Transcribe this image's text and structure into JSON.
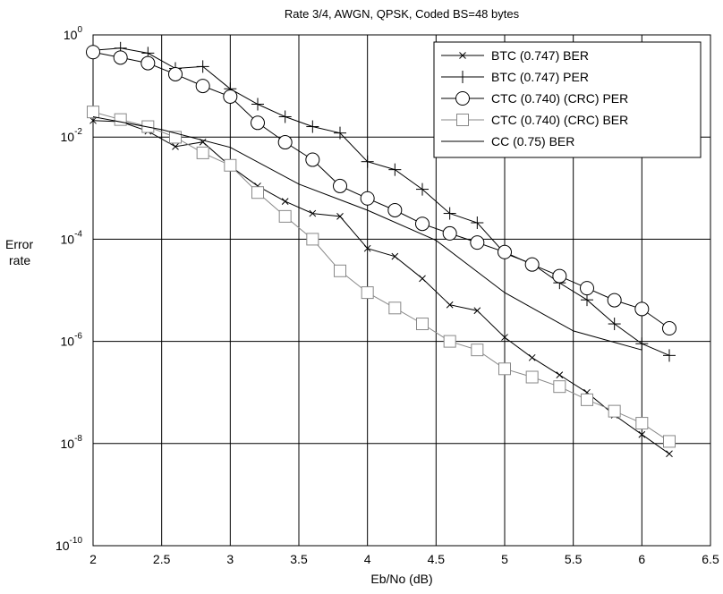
{
  "chart_data": {
    "type": "line",
    "title": "Rate 3/4, AWGN, QPSK, Coded BS=48 bytes",
    "xlabel": "Eb/No (dB)",
    "ylabel_line1": "Error",
    "ylabel_line2": "rate",
    "xlim": [
      2,
      6.5
    ],
    "ylim_exponent": [
      -10,
      0
    ],
    "yscale": "log",
    "grid": true,
    "legend_position": "top-right",
    "x_ticks": [
      "2",
      "2.5",
      "3",
      "3.5",
      "4",
      "4.5",
      "5",
      "5.5",
      "6",
      "6.5"
    ],
    "y_tick_base": "10",
    "y_tick_exponents": [
      "0",
      "-2",
      "-4",
      "-6",
      "-8",
      "-10"
    ],
    "series": [
      {
        "name": "BTC (0.747) BER",
        "marker": "x",
        "color": "#000000",
        "x": [
          2.0,
          2.2,
          2.4,
          2.6,
          2.8,
          3.0,
          3.2,
          3.4,
          3.6,
          3.8,
          4.0,
          4.2,
          4.4,
          4.6,
          4.8,
          5.0,
          5.2,
          5.4,
          5.6,
          5.8,
          6.0,
          6.2
        ],
        "y": [
          0.021,
          0.02,
          0.013,
          0.0065,
          0.008,
          0.0027,
          0.0011,
          0.00055,
          0.00032,
          0.00028,
          6.6e-05,
          4.6e-05,
          1.7e-05,
          5.2e-06,
          4e-06,
          1.2e-06,
          4.8e-07,
          2.2e-07,
          1e-07,
          3.6e-08,
          1.5e-08,
          6.3e-09
        ]
      },
      {
        "name": "BTC (0.747) PER",
        "marker": "+",
        "color": "#000000",
        "x": [
          2.0,
          2.2,
          2.4,
          2.6,
          2.8,
          3.0,
          3.2,
          3.4,
          3.6,
          3.8,
          4.0,
          4.2,
          4.4,
          4.6,
          4.8,
          5.0,
          5.2,
          5.4,
          5.6,
          5.8,
          6.0,
          6.2
        ],
        "y": [
          0.5,
          0.55,
          0.44,
          0.22,
          0.24,
          0.088,
          0.044,
          0.025,
          0.016,
          0.012,
          0.0033,
          0.0023,
          0.00095,
          0.00032,
          0.00021,
          5.3e-05,
          3.3e-05,
          1.4e-05,
          6.5e-06,
          2.2e-06,
          9e-07,
          5.3e-07
        ]
      },
      {
        "name": "CTC (0.740) (CRC) PER",
        "marker": "circle",
        "color": "#000000",
        "x": [
          2.0,
          2.2,
          2.4,
          2.6,
          2.8,
          3.0,
          3.2,
          3.4,
          3.6,
          3.8,
          4.0,
          4.2,
          4.4,
          4.6,
          4.8,
          5.0,
          5.2,
          5.4,
          5.6,
          5.8,
          6.0,
          6.2
        ],
        "y": [
          0.46,
          0.36,
          0.28,
          0.17,
          0.1,
          0.062,
          0.019,
          0.0079,
          0.0036,
          0.0011,
          0.00063,
          0.00037,
          0.0002,
          0.00013,
          8.6e-05,
          5.6e-05,
          3.2e-05,
          1.9e-05,
          1.1e-05,
          6.4e-06,
          4.3e-06,
          1.8e-06
        ]
      },
      {
        "name": "CTC (0.740) (CRC) BER",
        "marker": "square",
        "color": "#888888",
        "x": [
          2.0,
          2.2,
          2.4,
          2.6,
          2.8,
          3.0,
          3.2,
          3.4,
          3.6,
          3.8,
          4.0,
          4.2,
          4.4,
          4.6,
          4.8,
          5.0,
          5.2,
          5.4,
          5.6,
          5.8,
          6.0,
          6.2
        ],
        "y": [
          0.031,
          0.022,
          0.016,
          0.0099,
          0.0049,
          0.0028,
          0.00082,
          0.00028,
          0.0001,
          2.4e-05,
          9e-06,
          4.5e-06,
          2.2e-06,
          1e-06,
          6.8e-07,
          2.9e-07,
          2e-07,
          1.3e-07,
          7.2e-08,
          4.3e-08,
          2.5e-08,
          1.1e-08
        ]
      },
      {
        "name": "CC (0.75) BER",
        "marker": "none",
        "color": "#000000",
        "x": [
          2.0,
          2.5,
          3.0,
          3.5,
          4.0,
          4.5,
          5.0,
          5.5,
          6.0
        ],
        "y": [
          0.025,
          0.014,
          0.0063,
          0.0012,
          0.00037,
          9.5e-05,
          9e-06,
          1.6e-06,
          6.8e-07
        ]
      }
    ]
  }
}
